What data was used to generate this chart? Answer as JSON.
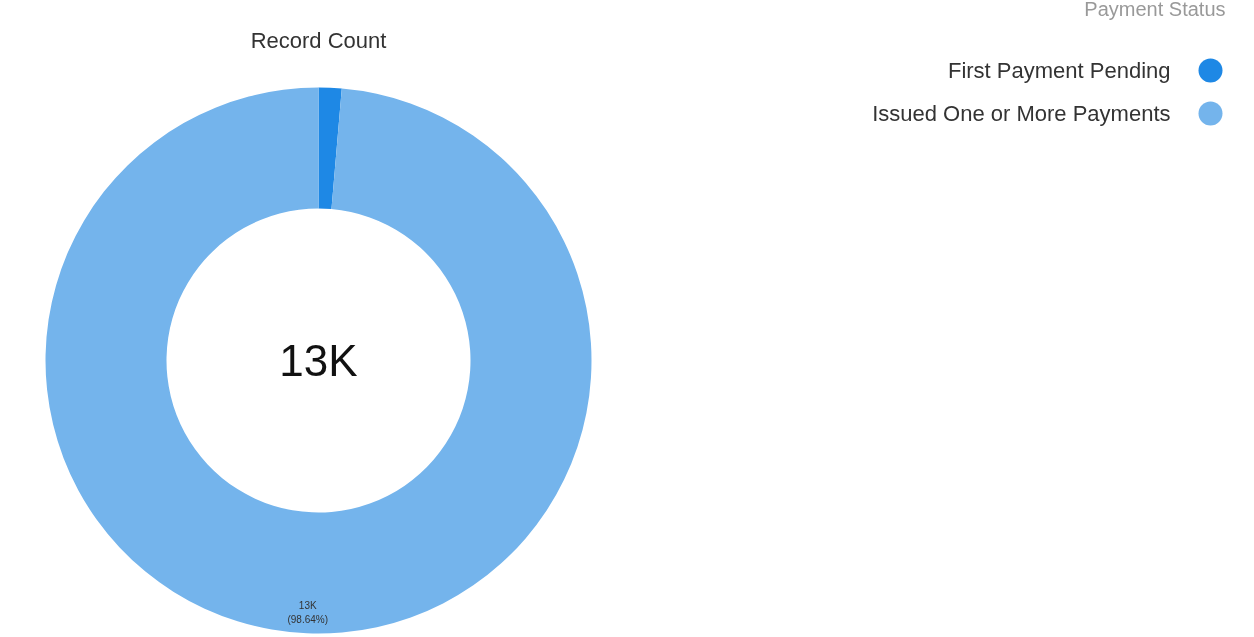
{
  "chart_data": {
    "type": "donut",
    "title": "Record Count",
    "legend_title": "Payment Status",
    "categories": [
      "First Payment Pending",
      "Issued One or More Payments"
    ],
    "values": [
      1.36,
      98.64
    ],
    "colors": [
      "#1e88e5",
      "#74b4ec"
    ],
    "value_labels": [
      null,
      "13K\n(98.64%)"
    ],
    "annotations": [
      "13K"
    ],
    "legend": "top right"
  }
}
